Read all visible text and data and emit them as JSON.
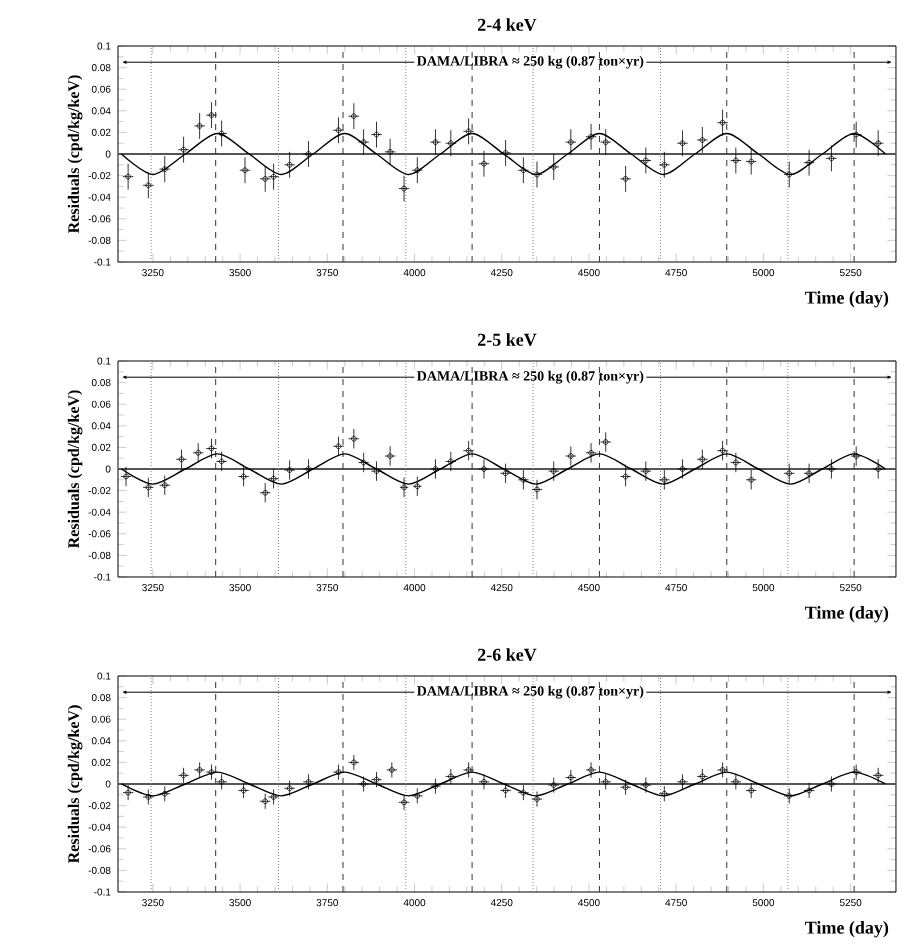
{
  "chart_data": [
    {
      "type": "scatter",
      "title": "2-4 keV",
      "xlabel": "Time (day)",
      "ylabel": "Residuals (cpd/kg/keV)",
      "xlim": [
        3150,
        5380
      ],
      "ylim": [
        -0.1,
        0.1
      ],
      "xticks": [
        3250,
        3500,
        3750,
        4000,
        4250,
        4500,
        4750,
        5000,
        5250
      ],
      "yticks": [
        -0.1,
        -0.08,
        -0.06,
        -0.04,
        -0.02,
        0,
        0.02,
        0.04,
        0.06,
        0.08,
        0.1
      ],
      "annotations": [
        "DAMA/LIBRA ≈ 250 kg   (0.87 ton×yr)"
      ],
      "ref_lines": [
        {
          "axis": "y",
          "value": 0,
          "color": "#555555",
          "line_style": "solid"
        },
        {
          "axis": "x",
          "value": 3245,
          "color": "#808080",
          "line_style": "dotted"
        },
        {
          "axis": "x",
          "value": 3610,
          "color": "#808080",
          "line_style": "dotted"
        },
        {
          "axis": "x",
          "value": 3975,
          "color": "#808080",
          "line_style": "dotted"
        },
        {
          "axis": "x",
          "value": 4340,
          "color": "#808080",
          "line_style": "dotted"
        },
        {
          "axis": "x",
          "value": 4705,
          "color": "#808080",
          "line_style": "dotted"
        },
        {
          "axis": "x",
          "value": 5070,
          "color": "#808080",
          "line_style": "dotted"
        },
        {
          "axis": "x",
          "value": 3430,
          "color": "#333333",
          "line_style": "dashed"
        },
        {
          "axis": "x",
          "value": 3795,
          "color": "#333333",
          "line_style": "dashed"
        },
        {
          "axis": "x",
          "value": 4165,
          "color": "#333333",
          "line_style": "dashed"
        },
        {
          "axis": "x",
          "value": 4530,
          "color": "#333333",
          "line_style": "dashed"
        },
        {
          "axis": "x",
          "value": 4895,
          "color": "#333333",
          "line_style": "dashed"
        },
        {
          "axis": "x",
          "value": 5260,
          "color": "#333333",
          "line_style": "dashed"
        }
      ],
      "series": [
        {
          "color": "#000000",
          "marker": "circle",
          "x": [
            3179,
            3237,
            3284,
            3338,
            3384,
            3418,
            3447,
            3514,
            3572,
            3596,
            3642,
            3696,
            3782,
            3826,
            3854,
            3891,
            3930,
            3970,
            4008,
            4060,
            4104,
            4155,
            4199,
            4261,
            4312,
            4351,
            4399,
            4448,
            4506,
            4548,
            4605,
            4663,
            4716,
            4768,
            4825,
            4883,
            4921,
            4965,
            5074,
            5131,
            5195,
            5266,
            5329
          ],
          "values": [
            -0.021,
            -0.029,
            -0.014,
            0.004,
            0.026,
            0.036,
            0.019,
            -0.015,
            -0.023,
            -0.021,
            -0.01,
            0.0,
            0.022,
            0.035,
            0.011,
            0.018,
            0.002,
            -0.032,
            -0.015,
            0.011,
            0.01,
            0.021,
            -0.009,
            0.001,
            -0.015,
            -0.019,
            -0.012,
            0.011,
            0.016,
            0.011,
            -0.023,
            -0.006,
            -0.01,
            0.01,
            0.013,
            0.029,
            -0.006,
            -0.007,
            -0.019,
            -0.008,
            -0.004,
            0.018,
            0.01
          ],
          "errors": [
            0.012,
            0.012,
            0.012,
            0.012,
            0.012,
            0.012,
            0.012,
            0.012,
            0.012,
            0.012,
            0.012,
            0.012,
            0.012,
            0.012,
            0.012,
            0.012,
            0.012,
            0.012,
            0.012,
            0.012,
            0.012,
            0.012,
            0.012,
            0.012,
            0.012,
            0.012,
            0.012,
            0.012,
            0.012,
            0.012,
            0.012,
            0.012,
            0.012,
            0.012,
            0.012,
            0.012,
            0.012,
            0.012,
            0.012,
            0.012,
            0.012,
            0.012,
            0.012
          ],
          "xerrors": [
            15,
            15,
            15,
            15,
            15,
            15,
            15,
            15,
            15,
            15,
            15,
            15,
            15,
            15,
            15,
            15,
            15,
            15,
            15,
            15,
            15,
            15,
            15,
            15,
            15,
            15,
            15,
            15,
            15,
            15,
            15,
            15,
            15,
            15,
            15,
            15,
            15,
            15,
            15,
            15,
            15,
            15,
            15
          ]
        },
        {
          "type": "line",
          "color": "#000000",
          "marker": "none",
          "x": [
            3160,
            3250,
            3343,
            3435,
            3526,
            3618,
            3709,
            3800,
            3891,
            3983,
            4074,
            4165,
            4256,
            4348,
            4439,
            4530,
            4621,
            4713,
            4804,
            4895,
            4986,
            5078,
            5169,
            5260,
            5350
          ],
          "values": [
            0,
            -0.019,
            0,
            0.019,
            0,
            -0.019,
            0,
            0.019,
            0,
            -0.019,
            0,
            0.019,
            0,
            -0.019,
            0,
            0.019,
            0,
            -0.019,
            0,
            0.019,
            0,
            -0.019,
            0,
            0.019,
            0
          ]
        }
      ]
    },
    {
      "type": "scatter",
      "title": "2-5 keV",
      "xlabel": "Time (day)",
      "ylabel": "Residuals (cpd/kg/keV)",
      "xlim": [
        3150,
        5380
      ],
      "ylim": [
        -0.1,
        0.1
      ],
      "xticks": [
        3250,
        3500,
        3750,
        4000,
        4250,
        4500,
        4750,
        5000,
        5250
      ],
      "yticks": [
        -0.1,
        -0.08,
        -0.06,
        -0.04,
        -0.02,
        0,
        0.02,
        0.04,
        0.06,
        0.08,
        0.1
      ],
      "annotations": [
        "DAMA/LIBRA ≈ 250 kg   (0.87 ton×yr)"
      ],
      "ref_lines": [
        {
          "axis": "y",
          "value": 0,
          "color": "#555555",
          "line_style": "solid"
        },
        {
          "axis": "x",
          "value": 3245,
          "color": "#808080",
          "line_style": "dotted"
        },
        {
          "axis": "x",
          "value": 3610,
          "color": "#808080",
          "line_style": "dotted"
        },
        {
          "axis": "x",
          "value": 3975,
          "color": "#808080",
          "line_style": "dotted"
        },
        {
          "axis": "x",
          "value": 4340,
          "color": "#808080",
          "line_style": "dotted"
        },
        {
          "axis": "x",
          "value": 4705,
          "color": "#808080",
          "line_style": "dotted"
        },
        {
          "axis": "x",
          "value": 5070,
          "color": "#808080",
          "line_style": "dotted"
        },
        {
          "axis": "x",
          "value": 3430,
          "color": "#333333",
          "line_style": "dashed"
        },
        {
          "axis": "x",
          "value": 3795,
          "color": "#333333",
          "line_style": "dashed"
        },
        {
          "axis": "x",
          "value": 4165,
          "color": "#333333",
          "line_style": "dashed"
        },
        {
          "axis": "x",
          "value": 4530,
          "color": "#333333",
          "line_style": "dashed"
        },
        {
          "axis": "x",
          "value": 4895,
          "color": "#333333",
          "line_style": "dashed"
        },
        {
          "axis": "x",
          "value": 5260,
          "color": "#333333",
          "line_style": "dashed"
        }
      ],
      "series": [
        {
          "color": "#000000",
          "marker": "circle",
          "x": [
            3173,
            3237,
            3284,
            3332,
            3380,
            3418,
            3447,
            3510,
            3572,
            3596,
            3642,
            3696,
            3782,
            3826,
            3854,
            3891,
            3930,
            3970,
            4008,
            4060,
            4104,
            4155,
            4199,
            4261,
            4312,
            4351,
            4399,
            4448,
            4506,
            4548,
            4605,
            4663,
            4716,
            4768,
            4825,
            4883,
            4921,
            4965,
            5074,
            5131,
            5195,
            5266,
            5329
          ],
          "values": [
            -0.007,
            -0.017,
            -0.015,
            0.009,
            0.015,
            0.019,
            0.007,
            -0.007,
            -0.022,
            -0.009,
            -0.001,
            0.0,
            0.021,
            0.028,
            0.006,
            -0.002,
            0.012,
            -0.017,
            -0.016,
            0.0,
            0.007,
            0.017,
            0.0,
            -0.004,
            -0.01,
            -0.019,
            -0.002,
            0.012,
            0.015,
            0.025,
            -0.007,
            -0.002,
            -0.01,
            0.0,
            0.009,
            0.017,
            0.006,
            -0.01,
            -0.004,
            -0.004,
            0.0,
            0.012,
            0.0
          ],
          "errors": [
            0.009,
            0.009,
            0.009,
            0.009,
            0.009,
            0.009,
            0.009,
            0.009,
            0.009,
            0.009,
            0.009,
            0.009,
            0.009,
            0.009,
            0.009,
            0.009,
            0.009,
            0.009,
            0.009,
            0.009,
            0.009,
            0.009,
            0.009,
            0.009,
            0.009,
            0.009,
            0.009,
            0.009,
            0.009,
            0.009,
            0.009,
            0.009,
            0.009,
            0.009,
            0.009,
            0.009,
            0.009,
            0.009,
            0.009,
            0.009,
            0.009,
            0.009,
            0.009
          ],
          "xerrors": [
            15,
            15,
            15,
            15,
            15,
            15,
            15,
            15,
            15,
            15,
            15,
            15,
            15,
            15,
            15,
            15,
            15,
            12,
            12,
            15,
            15,
            15,
            15,
            15,
            15,
            15,
            15,
            15,
            15,
            15,
            15,
            15,
            15,
            15,
            15,
            15,
            15,
            15,
            15,
            15,
            15,
            15,
            15
          ]
        },
        {
          "type": "line",
          "color": "#000000",
          "marker": "none",
          "x": [
            3160,
            3250,
            3343,
            3435,
            3526,
            3618,
            3709,
            3800,
            3891,
            3983,
            4074,
            4165,
            4256,
            4348,
            4439,
            4530,
            4621,
            4713,
            4804,
            4895,
            4986,
            5078,
            5169,
            5260,
            5350
          ],
          "values": [
            0,
            -0.014,
            0,
            0.014,
            0,
            -0.014,
            0,
            0.014,
            0,
            -0.014,
            0,
            0.014,
            0,
            -0.014,
            0,
            0.014,
            0,
            -0.014,
            0,
            0.014,
            0,
            -0.014,
            0,
            0.014,
            0
          ]
        }
      ]
    },
    {
      "type": "scatter",
      "title": "2-6 keV",
      "xlabel": "Time (day)",
      "ylabel": "Residuals (cpd/kg/keV)",
      "xlim": [
        3150,
        5380
      ],
      "ylim": [
        -0.1,
        0.1
      ],
      "xticks": [
        3250,
        3500,
        3750,
        4000,
        4250,
        4500,
        4750,
        5000,
        5250
      ],
      "yticks": [
        -0.1,
        -0.08,
        -0.06,
        -0.04,
        -0.02,
        0,
        0.02,
        0.04,
        0.06,
        0.08,
        0.1
      ],
      "annotations": [
        "DAMA/LIBRA ≈ 250 kg   (0.87 ton×yr)"
      ],
      "ref_lines": [
        {
          "axis": "y",
          "value": 0,
          "color": "#555555",
          "line_style": "solid"
        },
        {
          "axis": "x",
          "value": 3245,
          "color": "#808080",
          "line_style": "dotted"
        },
        {
          "axis": "x",
          "value": 3610,
          "color": "#808080",
          "line_style": "dotted"
        },
        {
          "axis": "x",
          "value": 3975,
          "color": "#808080",
          "line_style": "dotted"
        },
        {
          "axis": "x",
          "value": 4340,
          "color": "#808080",
          "line_style": "dotted"
        },
        {
          "axis": "x",
          "value": 4705,
          "color": "#808080",
          "line_style": "dotted"
        },
        {
          "axis": "x",
          "value": 5070,
          "color": "#808080",
          "line_style": "dotted"
        },
        {
          "axis": "x",
          "value": 3430,
          "color": "#333333",
          "line_style": "dashed"
        },
        {
          "axis": "x",
          "value": 3795,
          "color": "#333333",
          "line_style": "dashed"
        },
        {
          "axis": "x",
          "value": 4165,
          "color": "#333333",
          "line_style": "dashed"
        },
        {
          "axis": "x",
          "value": 4530,
          "color": "#333333",
          "line_style": "dashed"
        },
        {
          "axis": "x",
          "value": 4895,
          "color": "#333333",
          "line_style": "dashed"
        },
        {
          "axis": "x",
          "value": 5260,
          "color": "#333333",
          "line_style": "dashed"
        }
      ],
      "series": [
        {
          "color": "#000000",
          "marker": "circle",
          "x": [
            3179,
            3237,
            3284,
            3338,
            3384,
            3418,
            3447,
            3510,
            3572,
            3596,
            3642,
            3696,
            3782,
            3826,
            3854,
            3891,
            3935,
            3970,
            4008,
            4060,
            4104,
            4155,
            4199,
            4261,
            4312,
            4351,
            4399,
            4448,
            4506,
            4548,
            4605,
            4663,
            4716,
            4768,
            4825,
            4883,
            4921,
            4965,
            5074,
            5131,
            5195,
            5266,
            5329
          ],
          "values": [
            -0.008,
            -0.012,
            -0.009,
            0.008,
            0.013,
            0.011,
            0.002,
            -0.006,
            -0.016,
            -0.012,
            -0.004,
            0.002,
            0.011,
            0.02,
            0.0,
            0.004,
            0.013,
            -0.017,
            -0.011,
            -0.002,
            0.007,
            0.013,
            0.002,
            -0.006,
            -0.008,
            -0.014,
            -0.001,
            0.006,
            0.013,
            0.002,
            -0.003,
            -0.001,
            -0.009,
            0.002,
            0.007,
            0.013,
            0.002,
            -0.006,
            -0.011,
            -0.006,
            0.0,
            0.011,
            0.008
          ],
          "errors": [
            0.007,
            0.007,
            0.007,
            0.007,
            0.007,
            0.007,
            0.007,
            0.007,
            0.007,
            0.007,
            0.007,
            0.007,
            0.007,
            0.007,
            0.007,
            0.007,
            0.007,
            0.007,
            0.007,
            0.007,
            0.007,
            0.007,
            0.007,
            0.007,
            0.007,
            0.007,
            0.007,
            0.007,
            0.007,
            0.007,
            0.007,
            0.007,
            0.007,
            0.007,
            0.007,
            0.007,
            0.007,
            0.007,
            0.007,
            0.007,
            0.007,
            0.007,
            0.007
          ],
          "xerrors": [
            15,
            15,
            15,
            15,
            15,
            15,
            15,
            15,
            15,
            15,
            15,
            15,
            15,
            15,
            15,
            15,
            15,
            15,
            15,
            15,
            15,
            15,
            15,
            15,
            15,
            15,
            15,
            15,
            15,
            15,
            15,
            15,
            15,
            15,
            15,
            15,
            15,
            15,
            15,
            15,
            15,
            15,
            15
          ]
        },
        {
          "type": "line",
          "color": "#000000",
          "marker": "none",
          "x": [
            3160,
            3250,
            3343,
            3435,
            3526,
            3618,
            3709,
            3800,
            3891,
            3983,
            4074,
            4165,
            4256,
            4348,
            4439,
            4530,
            4621,
            4713,
            4804,
            4895,
            4986,
            5078,
            5169,
            5260,
            5350
          ],
          "values": [
            0,
            -0.011,
            0,
            0.011,
            0,
            -0.011,
            0,
            0.011,
            0,
            -0.011,
            0,
            0.011,
            0,
            -0.011,
            0,
            0.011,
            0,
            -0.011,
            0,
            0.011,
            0,
            -0.011,
            0,
            0.011,
            0
          ]
        }
      ]
    }
  ]
}
